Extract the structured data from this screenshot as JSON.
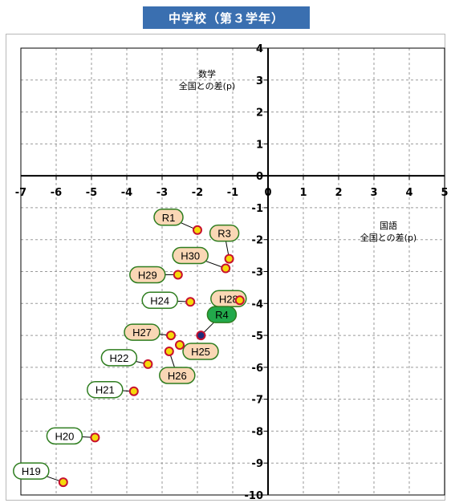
{
  "title": "中学校（第３学年）",
  "chart_data": {
    "type": "scatter",
    "x_title_lines": [
      "国語",
      "全国との差(p)"
    ],
    "y_title_lines": [
      "数学",
      "全国との差(p)"
    ],
    "xlim": [
      -7,
      5
    ],
    "ylim": [
      -10,
      4
    ],
    "x_ticks": [
      -7,
      -6,
      -5,
      -4,
      -3,
      -2,
      -1,
      0,
      1,
      2,
      3,
      4,
      5
    ],
    "y_ticks": [
      4,
      3,
      2,
      1,
      0,
      -1,
      -2,
      -3,
      -4,
      -5,
      -6,
      -7,
      -8,
      -9,
      -10
    ],
    "grid": true,
    "points": [
      {
        "label": "H19",
        "x": -5.8,
        "y": -9.6,
        "style": "white"
      },
      {
        "label": "H20",
        "x": -4.9,
        "y": -8.2,
        "style": "white"
      },
      {
        "label": "H21",
        "x": -3.8,
        "y": -6.75,
        "style": "white"
      },
      {
        "label": "H22",
        "x": -3.4,
        "y": -5.9,
        "style": "white"
      },
      {
        "label": "H24",
        "x": -2.2,
        "y": -3.95,
        "style": "white"
      },
      {
        "label": "H25",
        "x": -2.5,
        "y": -5.3,
        "style": "orange"
      },
      {
        "label": "H26",
        "x": -2.8,
        "y": -5.5,
        "style": "orange"
      },
      {
        "label": "H27",
        "x": -2.75,
        "y": -5.0,
        "style": "orange"
      },
      {
        "label": "H28",
        "x": -0.8,
        "y": -3.9,
        "style": "orange"
      },
      {
        "label": "H29",
        "x": -2.55,
        "y": -3.1,
        "style": "orange"
      },
      {
        "label": "H30",
        "x": -1.2,
        "y": -2.9,
        "style": "orange"
      },
      {
        "label": "R1",
        "x": -2.0,
        "y": -1.7,
        "style": "orange"
      },
      {
        "label": "R3",
        "x": -1.1,
        "y": -2.6,
        "style": "orange"
      },
      {
        "label": "R4",
        "x": -1.9,
        "y": -5.0,
        "style": "current"
      }
    ],
    "colors": {
      "banner": "#3a6fb0",
      "marker_fill": "#f5d90a",
      "marker_edge": "#c8102e",
      "current_marker_fill": "#1f2d7a",
      "label_border": "#2e7d1f",
      "label_orange_fill": "#fad7b5",
      "label_current_fill": "#22a94b"
    }
  }
}
